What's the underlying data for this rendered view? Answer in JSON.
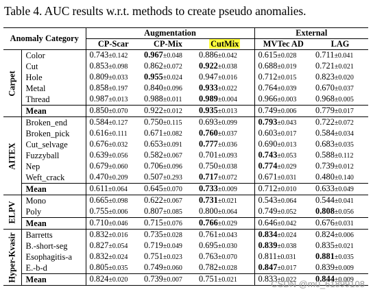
{
  "caption": "Table 4. AUC results w.r.t. methods to create pseudo anomalies.",
  "header": {
    "category_label": "Anomaly Category",
    "augmentation_label": "Augmentation",
    "external_label": "External",
    "methods": [
      "CP-Scar",
      "CP-Mix",
      "CutMix",
      "MVTec AD",
      "LAG"
    ],
    "highlight_color": "#ffff3c"
  },
  "groups": [
    {
      "name": "Carpet",
      "rows": [
        {
          "label": "Color",
          "cells": [
            [
              "0.743",
              "±0.142",
              false
            ],
            [
              "0.967",
              "±0.048",
              true
            ],
            [
              "0.886",
              "±0.042",
              false
            ],
            [
              "0.615",
              "±0.028",
              false
            ],
            [
              "0.711",
              "±0.041",
              false
            ]
          ]
        },
        {
          "label": "Cut",
          "cells": [
            [
              "0.853",
              "±0.098",
              false
            ],
            [
              "0.862",
              "±0.072",
              false
            ],
            [
              "0.922",
              "±0.038",
              true
            ],
            [
              "0.688",
              "±0.019",
              false
            ],
            [
              "0.721",
              "±0.021",
              false
            ]
          ]
        },
        {
          "label": "Hole",
          "cells": [
            [
              "0.809",
              "±0.033",
              false
            ],
            [
              "0.955",
              "±0.024",
              true
            ],
            [
              "0.947",
              "±0.016",
              false
            ],
            [
              "0.712",
              "±0.015",
              false
            ],
            [
              "0.823",
              "±0.020",
              false
            ]
          ]
        },
        {
          "label": "Metal",
          "cells": [
            [
              "0.858",
              "±0.197",
              false
            ],
            [
              "0.840",
              "±0.096",
              false
            ],
            [
              "0.933",
              "±0.022",
              true
            ],
            [
              "0.764",
              "±0.039",
              false
            ],
            [
              "0.670",
              "±0.037",
              false
            ]
          ]
        },
        {
          "label": "Thread",
          "cells": [
            [
              "0.987",
              "±0.013",
              false
            ],
            [
              "0.988",
              "±0.011",
              false
            ],
            [
              "0.989",
              "±0.004",
              true
            ],
            [
              "0.966",
              "±0.003",
              false
            ],
            [
              "0.968",
              "±0.005",
              false
            ]
          ]
        }
      ],
      "mean": {
        "label": "Mean",
        "cells": [
          [
            "0.850",
            "±0.070",
            false
          ],
          [
            "0.922",
            "±0.012",
            false
          ],
          [
            "0.935",
            "±0.013",
            true
          ],
          [
            "0.749",
            "±0.006",
            false
          ],
          [
            "0.779",
            "±0.017",
            false
          ]
        ]
      }
    },
    {
      "name": "AITEX",
      "rows": [
        {
          "label": "Broken_end",
          "cells": [
            [
              "0.584",
              "±0.127",
              false
            ],
            [
              "0.750",
              "±0.115",
              false
            ],
            [
              "0.693",
              "±0.099",
              false
            ],
            [
              "0.793",
              "±0.043",
              true
            ],
            [
              "0.722",
              "±0.072",
              false
            ]
          ]
        },
        {
          "label": "Broken_pick",
          "cells": [
            [
              "0.616",
              "±0.111",
              false
            ],
            [
              "0.671",
              "±0.082",
              false
            ],
            [
              "0.760",
              "±0.037",
              true
            ],
            [
              "0.603",
              "±0.017",
              false
            ],
            [
              "0.584",
              "±0.034",
              false
            ]
          ]
        },
        {
          "label": "Cut_selvage",
          "cells": [
            [
              "0.676",
              "±0.032",
              false
            ],
            [
              "0.653",
              "±0.091",
              false
            ],
            [
              "0.777",
              "±0.036",
              true
            ],
            [
              "0.690",
              "±0.013",
              false
            ],
            [
              "0.683",
              "±0.035",
              false
            ]
          ]
        },
        {
          "label": "Fuzzyball",
          "cells": [
            [
              "0.639",
              "±0.056",
              false
            ],
            [
              "0.582",
              "±0.067",
              false
            ],
            [
              "0.701",
              "±0.093",
              false
            ],
            [
              "0.743",
              "±0.053",
              true
            ],
            [
              "0.588",
              "±0.112",
              false
            ]
          ]
        },
        {
          "label": "Nep",
          "cells": [
            [
              "0.679",
              "±0.060",
              false
            ],
            [
              "0.706",
              "±0.096",
              false
            ],
            [
              "0.750",
              "±0.038",
              false
            ],
            [
              "0.774",
              "±0.029",
              true
            ],
            [
              "0.739",
              "±0.012",
              false
            ]
          ]
        },
        {
          "label": "Weft_crack",
          "cells": [
            [
              "0.470",
              "±0.209",
              false
            ],
            [
              "0.507",
              "±0.293",
              false
            ],
            [
              "0.717",
              "±0.072",
              true
            ],
            [
              "0.671",
              "±0.031",
              false
            ],
            [
              "0.480",
              "±0.140",
              false
            ]
          ]
        }
      ],
      "mean": {
        "label": "Mean",
        "cells": [
          [
            "0.611",
            "±0.064",
            false
          ],
          [
            "0.645",
            "±0.070",
            false
          ],
          [
            "0.733",
            "±0.009",
            true
          ],
          [
            "0.712",
            "±0.010",
            false
          ],
          [
            "0.633",
            "±0.049",
            false
          ]
        ]
      }
    },
    {
      "name": "ELPV",
      "rows": [
        {
          "label": "Mono",
          "cells": [
            [
              "0.665",
              "±0.098",
              false
            ],
            [
              "0.622",
              "±0.067",
              false
            ],
            [
              "0.731",
              "±0.021",
              true
            ],
            [
              "0.543",
              "±0.064",
              false
            ],
            [
              "0.544",
              "±0.041",
              false
            ]
          ]
        },
        {
          "label": "Poly",
          "cells": [
            [
              "0.755",
              "±0.006",
              false
            ],
            [
              "0.807",
              "±0.085",
              false
            ],
            [
              "0.800",
              "±0.064",
              false
            ],
            [
              "0.749",
              "±0.052",
              false
            ],
            [
              "0.808",
              "±0.056",
              true
            ]
          ]
        }
      ],
      "mean": {
        "label": "Mean",
        "cells": [
          [
            "0.710",
            "±0.046",
            false
          ],
          [
            "0.715",
            "±0.076",
            false
          ],
          [
            "0.766",
            "±0.029",
            true
          ],
          [
            "0.646",
            "±0.042",
            false
          ],
          [
            "0.676",
            "±0.031",
            false
          ]
        ]
      }
    },
    {
      "name": "Hyper-Kvasir",
      "rows": [
        {
          "label": "Barretts",
          "cells": [
            [
              "0.832",
              "±0.016",
              false
            ],
            [
              "0.735",
              "±0.028",
              false
            ],
            [
              "0.761",
              "±0.043",
              false
            ],
            [
              "0.834",
              "±0.024",
              true
            ],
            [
              "0.824",
              "±0.006",
              false
            ]
          ]
        },
        {
          "label": "B.-short-seg",
          "cells": [
            [
              "0.827",
              "±0.054",
              false
            ],
            [
              "0.719",
              "±0.049",
              false
            ],
            [
              "0.695",
              "±0.030",
              false
            ],
            [
              "0.839",
              "±0.038",
              true
            ],
            [
              "0.835",
              "±0.021",
              false
            ]
          ]
        },
        {
          "label": "Esophagitis-a",
          "cells": [
            [
              "0.832",
              "±0.024",
              false
            ],
            [
              "0.751",
              "±0.023",
              false
            ],
            [
              "0.763",
              "±0.070",
              false
            ],
            [
              "0.811",
              "±0.031",
              false
            ],
            [
              "0.881",
              "±0.035",
              true
            ]
          ]
        },
        {
          "label": "E.-b-d",
          "cells": [
            [
              "0.805",
              "±0.035",
              false
            ],
            [
              "0.749",
              "±0.060",
              false
            ],
            [
              "0.782",
              "±0.028",
              false
            ],
            [
              "0.847",
              "±0.017",
              true
            ],
            [
              "0.839",
              "±0.009",
              false
            ]
          ]
        }
      ],
      "mean": {
        "label": "Mean",
        "cells": [
          [
            "0.824",
            "±0.020",
            false
          ],
          [
            "0.739",
            "±0.007",
            false
          ],
          [
            "0.751",
            "±0.021",
            false
          ],
          [
            "0.833",
            "±0.022",
            false
          ],
          [
            "0.844",
            "±0.009",
            true
          ]
        ]
      }
    }
  ],
  "watermark": "CSDN @m0_61899108"
}
